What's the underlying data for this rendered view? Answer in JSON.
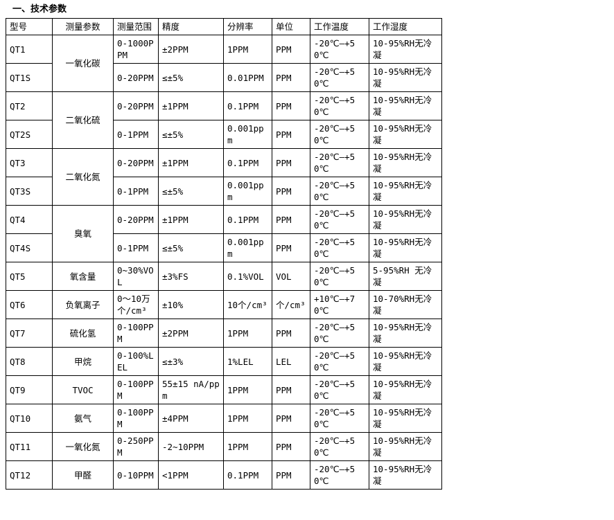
{
  "title": "一、技术参数",
  "table": {
    "headers": [
      "型号",
      "测量参数",
      "测量范围",
      "精度",
      "分辨率",
      "单位",
      "工作温度",
      "工作湿度"
    ],
    "header_keys": [
      "model",
      "param",
      "range",
      "precision",
      "resolution",
      "unit",
      "temp",
      "humidity"
    ],
    "rows": [
      {
        "model": "QT1",
        "param": "一氧化碳",
        "param_rowspan": 2,
        "range": "0-1000PPM",
        "precision": "±2PPM",
        "resolution": "1PPM",
        "unit": "PPM",
        "temp": "-20℃—+50℃",
        "humidity": "10-95%RH无冷凝"
      },
      {
        "model": "QT1S",
        "param": null,
        "range": "0-20PPM",
        "precision": "≤±5%",
        "resolution": "0.01PPM",
        "unit": "PPM",
        "temp": "-20℃—+50℃",
        "humidity": "10-95%RH无冷凝"
      },
      {
        "model": "QT2",
        "param": "二氧化硫",
        "param_rowspan": 2,
        "range": "0-20PPM",
        "precision": "±1PPM",
        "resolution": "0.1PPM",
        "unit": "PPM",
        "temp": "-20℃—+50℃",
        "humidity": "10-95%RH无冷凝"
      },
      {
        "model": "QT2S",
        "param": null,
        "range": "0-1PPM",
        "precision": "≤±5%",
        "resolution": "0.001ppm",
        "unit": "PPM",
        "temp": "-20℃—+50℃",
        "humidity": "10-95%RH无冷凝"
      },
      {
        "model": "QT3",
        "param": "二氧化氮",
        "param_rowspan": 2,
        "range": "0-20PPM",
        "precision": "±1PPM",
        "resolution": "0.1PPM",
        "unit": "PPM",
        "temp": "-20℃—+50℃",
        "humidity": "10-95%RH无冷凝"
      },
      {
        "model": "QT3S",
        "param": null,
        "range": "0-1PPM",
        "precision": "≤±5%",
        "resolution": "0.001ppm",
        "unit": "PPM",
        "temp": "-20℃—+50℃",
        "humidity": "10-95%RH无冷凝"
      },
      {
        "model": "QT4",
        "param": "臭氧",
        "param_rowspan": 2,
        "range": "0-20PPM",
        "precision": "±1PPM",
        "resolution": "0.1PPM",
        "unit": "PPM",
        "temp": "-20℃—+50℃",
        "humidity": "10-95%RH无冷凝"
      },
      {
        "model": "QT4S",
        "param": null,
        "range": "0-1PPM",
        "precision": "≤±5%",
        "resolution": "0.001ppm",
        "unit": "PPM",
        "temp": "-20℃—+50℃",
        "humidity": "10-95%RH无冷凝"
      },
      {
        "model": "QT5",
        "param": "氧含量",
        "range": "0~30%VOL",
        "precision": "±3%FS",
        "resolution": "0.1%VOL",
        "unit": "VOL",
        "temp": "-20℃—+50℃",
        "humidity": "5-95%RH 无冷凝"
      },
      {
        "model": "QT6",
        "param": "负氧离子",
        "range": "0～10万 个/cm³",
        "precision": "±10%",
        "resolution": "10个/cm³",
        "unit": "个/cm³",
        "temp": "+10℃—+70℃",
        "humidity": "10-70%RH无冷凝"
      },
      {
        "model": "QT7",
        "param": "硫化氢",
        "range": "0-100PPM",
        "precision": "±2PPM",
        "resolution": "1PPM",
        "unit": "PPM",
        "temp": "-20℃—+50℃",
        "humidity": "10-95%RH无冷凝"
      },
      {
        "model": "QT8",
        "param": "甲烷",
        "range": "0-100%LEL",
        "precision": "≤±3%",
        "resolution": "1%LEL",
        "unit": "LEL",
        "temp": "-20℃—+50℃",
        "humidity": "10-95%RH无冷凝"
      },
      {
        "model": "QT9",
        "param": "TVOC",
        "range": "0-100PPM",
        "precision": "55±15 nA/ppm",
        "resolution": "1PPM",
        "unit": "PPM",
        "temp": "-20℃—+50℃",
        "humidity": "10-95%RH无冷凝"
      },
      {
        "model": "QT10",
        "param": "氨气",
        "range": "0-100PPM",
        "precision": "±4PPM",
        "resolution": "1PPM",
        "unit": "PPM",
        "temp": "-20℃—+50℃",
        "humidity": "10-95%RH无冷凝"
      },
      {
        "model": "QT11",
        "param": "一氧化氮",
        "range": "0-250PPM",
        "precision": "-2~10PPM",
        "resolution": "1PPM",
        "unit": "PPM",
        "temp": "-20℃—+50℃",
        "humidity": "10-95%RH无冷凝"
      },
      {
        "model": "QT12",
        "param": "甲醛",
        "range": "0-10PPM",
        "precision": "<1PPM",
        "resolution": "0.1PPM",
        "unit": "PPM",
        "temp": "-20℃—+50℃",
        "humidity": "10-95%RH无冷凝"
      }
    ]
  }
}
